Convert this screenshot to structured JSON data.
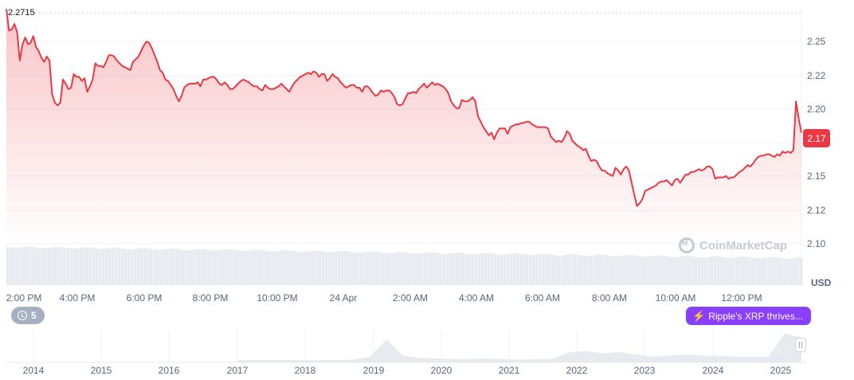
{
  "chart_data": [
    {
      "type": "area",
      "series": [
        {
          "values": [
            2.271,
            2.255,
            2.256,
            2.26,
            2.254,
            2.233,
            2.245,
            2.25,
            2.245,
            2.246,
            2.251,
            2.243,
            2.24,
            2.235,
            2.232,
            2.236,
            2.233,
            2.208,
            2.202,
            2.2,
            2.202,
            2.219,
            2.216,
            2.212,
            2.213,
            2.223,
            2.221,
            2.221,
            2.218,
            2.22,
            2.21,
            2.214,
            2.219,
            2.231,
            2.229,
            2.229,
            2.228,
            2.232,
            2.237,
            2.237,
            2.236,
            2.233,
            2.231,
            2.229,
            2.228,
            2.227,
            2.226,
            2.232,
            2.234,
            2.236,
            2.24,
            2.244,
            2.247,
            2.246,
            2.242,
            2.237,
            2.232,
            2.226,
            2.224,
            2.219,
            2.218,
            2.215,
            2.212,
            2.207,
            2.203,
            2.207,
            2.213,
            2.215,
            2.216,
            2.216,
            2.216,
            2.217,
            2.214,
            2.219,
            2.219,
            2.22,
            2.221,
            2.221,
            2.219,
            2.216,
            2.215,
            2.217,
            2.215,
            2.212,
            2.212,
            2.214,
            2.216,
            2.218,
            2.219,
            2.218,
            2.217,
            2.215,
            2.214,
            2.214,
            2.212,
            2.211,
            2.215,
            2.213,
            2.212,
            2.212,
            2.213,
            2.214,
            2.216,
            2.214,
            2.212,
            2.21,
            2.214,
            2.217,
            2.219,
            2.221,
            2.222,
            2.223,
            2.224,
            2.223,
            2.225,
            2.224,
            2.221,
            2.223,
            2.223,
            2.218,
            2.22,
            2.223,
            2.221,
            2.22,
            2.217,
            2.215,
            2.213,
            2.214,
            2.215,
            2.215,
            2.213,
            2.213,
            2.21,
            2.214,
            2.214,
            2.212,
            2.209,
            2.207,
            2.208,
            2.211,
            2.21,
            2.211,
            2.211,
            2.209,
            2.206,
            2.201,
            2.2,
            2.201,
            2.205,
            2.209,
            2.209,
            2.21,
            2.209,
            2.212,
            2.214,
            2.216,
            2.213,
            2.215,
            2.217,
            2.215,
            2.216,
            2.215,
            2.214,
            2.212,
            2.209,
            2.203,
            2.2,
            2.198,
            2.198,
            2.204,
            2.203,
            2.203,
            2.204,
            2.206,
            2.203,
            2.192,
            2.188,
            2.184,
            2.181,
            2.178,
            2.18,
            2.175,
            2.18,
            2.183,
            2.183,
            2.183,
            2.179,
            2.184,
            2.185,
            2.186,
            2.186,
            2.187,
            2.187,
            2.188,
            2.188,
            2.186,
            2.185,
            2.184,
            2.184,
            2.184,
            2.184,
            2.183,
            2.177,
            2.175,
            2.173,
            2.174,
            2.173,
            2.176,
            2.181,
            2.179,
            2.174,
            2.172,
            2.17,
            2.169,
            2.167,
            2.168,
            2.163,
            2.159,
            2.16,
            2.159,
            2.155,
            2.152,
            2.152,
            2.15,
            2.149,
            2.148,
            2.154,
            2.152,
            2.149,
            2.153,
            2.155,
            2.152,
            2.143,
            2.134,
            2.126,
            2.128,
            2.131,
            2.137,
            2.138,
            2.139,
            2.14,
            2.141,
            2.143,
            2.144,
            2.144,
            2.145,
            2.143,
            2.141,
            2.145,
            2.146,
            2.143,
            2.146,
            2.149,
            2.149,
            2.151,
            2.151,
            2.152,
            2.153,
            2.152,
            2.153,
            2.155,
            2.155,
            2.153,
            2.146,
            2.147,
            2.147,
            2.147,
            2.148,
            2.146,
            2.147,
            2.147,
            2.149,
            2.151,
            2.152,
            2.154,
            2.156,
            2.155,
            2.157,
            2.16,
            2.162,
            2.163,
            2.163,
            2.164,
            2.164,
            2.163,
            2.162,
            2.164,
            2.163,
            2.166,
            2.165,
            2.166,
            2.165,
            2.167,
            2.203,
            2.19,
            2.18
          ],
          "color": "#ea3943"
        }
      ],
      "x_ticks": [
        "2:00 PM",
        "4:00 PM",
        "6:00 PM",
        "8:00 PM",
        "10:00 PM",
        "24 Apr",
        "2:00 AM",
        "4:00 AM",
        "6:00 AM",
        "8:00 AM",
        "10:00 AM",
        "12:00 PM"
      ],
      "y_ticks": [
        "2.25",
        "2.22",
        "2.20",
        "2.15",
        "2.12",
        "2.10"
      ],
      "y_axis_unit": "USD",
      "ylim": [
        2.0946,
        2.2717
      ],
      "high_label": "2.2715",
      "current_price": "2.17",
      "area_fill": "red-gradient",
      "grid": true,
      "volume_bars": true
    },
    {
      "type": "area",
      "x_ticks": [
        "2014",
        "2015",
        "2016",
        "2017",
        "2018",
        "2019",
        "2020",
        "2021",
        "2022",
        "2023",
        "2024",
        "2025"
      ],
      "series": [
        {
          "values": [
            0.2,
            0.2,
            0.2,
            0.2,
            0.2,
            0.2,
            0.2,
            0.25,
            0.5,
            2.0,
            0.6,
            0.4,
            0.35,
            0.3,
            0.3,
            0.35,
            0.3,
            0.25,
            0.3,
            0.3,
            0.9,
            1.0,
            0.8,
            0.9,
            0.7,
            0.5,
            0.6,
            0.7,
            0.6,
            0.6,
            0.5,
            0.5,
            0.5,
            2.5,
            2.2
          ]
        }
      ]
    }
  ],
  "badges": {
    "event_count": "5",
    "news": "Ripple's XRP thrives..."
  },
  "watermark": "CoinMarketCap",
  "colors": {
    "line": "#ea3943",
    "news": "#8a3ffc",
    "grid": "#eff2f5",
    "volume": "#e8ebef"
  }
}
